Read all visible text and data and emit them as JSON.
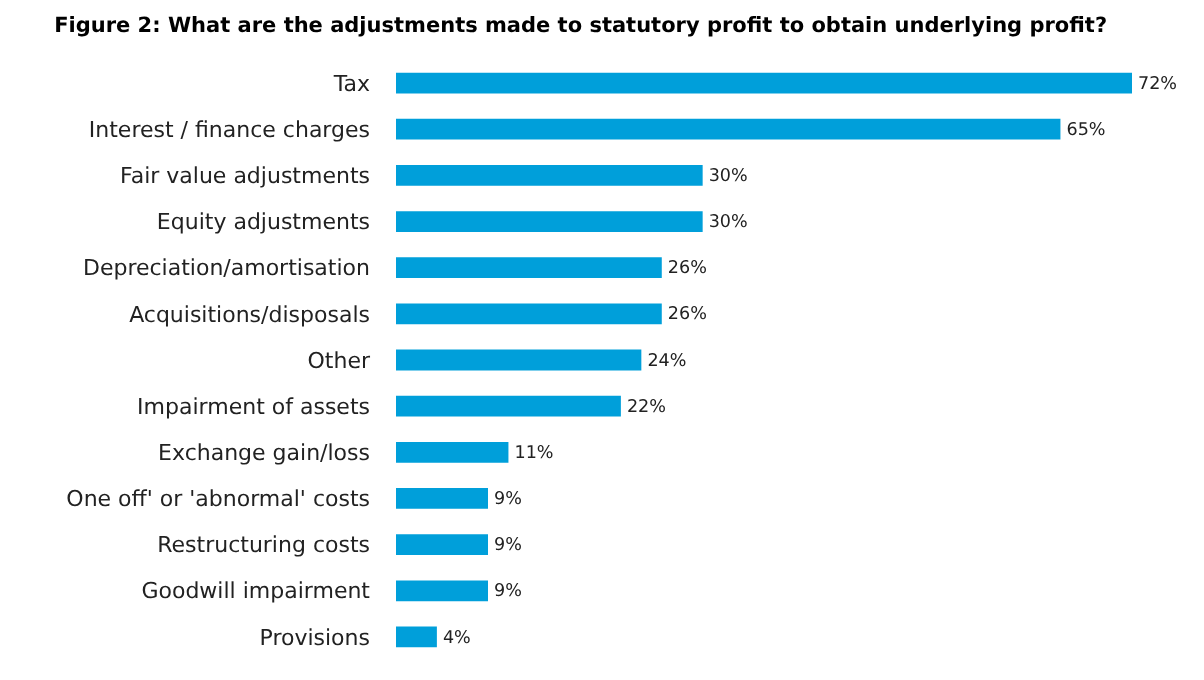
{
  "chart_data": {
    "type": "bar",
    "orientation": "horizontal",
    "title": "Figure 2: What are the adjustments made to statutory profit to obtain underlying profit?",
    "categories": [
      "Tax",
      "Interest / finance charges",
      "Fair value adjustments",
      "Equity adjustments",
      "Depreciation/amortisation",
      "Acquisitions/disposals",
      "Other",
      "Impairment of assets",
      "Exchange gain/loss",
      "One off' or 'abnormal' costs",
      "Restructuring costs",
      "Goodwill impairment",
      "Provisions"
    ],
    "values": [
      72,
      65,
      30,
      30,
      26,
      26,
      24,
      22,
      11,
      9,
      9,
      9,
      4
    ],
    "value_labels": [
      "72%",
      "65%",
      "30%",
      "30%",
      "26%",
      "26%",
      "24%",
      "22%",
      "11%",
      "9%",
      "9%",
      "9%",
      "4%"
    ],
    "color": "#009fda"
  }
}
